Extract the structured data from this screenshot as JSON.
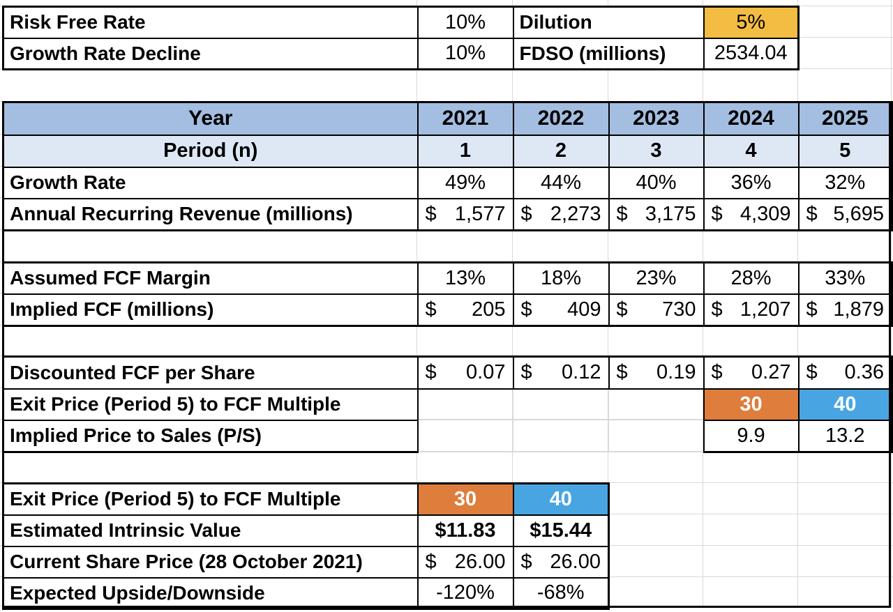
{
  "assumptions": {
    "risk_free_rate": {
      "label": "Risk Free Rate",
      "value": "10%"
    },
    "growth_rate_decline": {
      "label": "Growth Rate Decline",
      "value": "10%"
    },
    "dilution": {
      "label": "Dilution",
      "value": "5%"
    },
    "fdso": {
      "label": "FDSO (millions)",
      "value": "2534.04"
    }
  },
  "projection": {
    "header": {
      "label": "Year",
      "years": [
        "2021",
        "2022",
        "2023",
        "2024",
        "2025"
      ]
    },
    "period": {
      "label": "Period (n)",
      "values": [
        "1",
        "2",
        "3",
        "4",
        "5"
      ]
    },
    "growth_rate": {
      "label": "Growth Rate",
      "values": [
        "49%",
        "44%",
        "40%",
        "36%",
        "32%"
      ]
    },
    "arr": {
      "label": "Annual Recurring Revenue (millions)",
      "currency": "$",
      "values": [
        "1,577",
        "2,273",
        "3,175",
        "4,309",
        "5,695"
      ]
    },
    "fcf_margin": {
      "label": "Assumed FCF Margin",
      "values": [
        "13%",
        "18%",
        "23%",
        "28%",
        "33%"
      ]
    },
    "implied_fcf": {
      "label": "Implied FCF (millions)",
      "currency": "$",
      "values": [
        "205",
        "409",
        "730",
        "1,207",
        "1,879"
      ]
    },
    "discounted_fcf": {
      "label": "Discounted FCF per Share",
      "currency": "$",
      "values": [
        "0.07",
        "0.12",
        "0.19",
        "0.27",
        "0.36"
      ]
    },
    "exit_multiple": {
      "label": "Exit Price (Period 5) to FCF Multiple",
      "low": "30",
      "high": "40"
    },
    "implied_ps": {
      "label": "Implied Price to Sales (P/S)",
      "low": "9.9",
      "high": "13.2"
    }
  },
  "valuation": {
    "exit_multiple": {
      "label": "Exit Price (Period 5) to FCF Multiple",
      "low": "30",
      "high": "40"
    },
    "intrinsic_value": {
      "label": "Estimated Intrinsic Value",
      "low": "$11.83",
      "high": "$15.44"
    },
    "current_price": {
      "label": "Current Share Price (28 October 2021)",
      "currency": "$",
      "low": "26.00",
      "high": "26.00"
    },
    "upside": {
      "label": "Expected Upside/Downside",
      "low": "-120%",
      "high": "-68%"
    }
  },
  "colors": {
    "highlight_gold": "#f2bd42",
    "scenario_low_orange": "#de7d3c",
    "scenario_high_blue": "#49a5e2",
    "header_blue": "#a3bee0",
    "subheader_blue": "#dee7f4",
    "gridline_gray": "#d9d9d9"
  }
}
